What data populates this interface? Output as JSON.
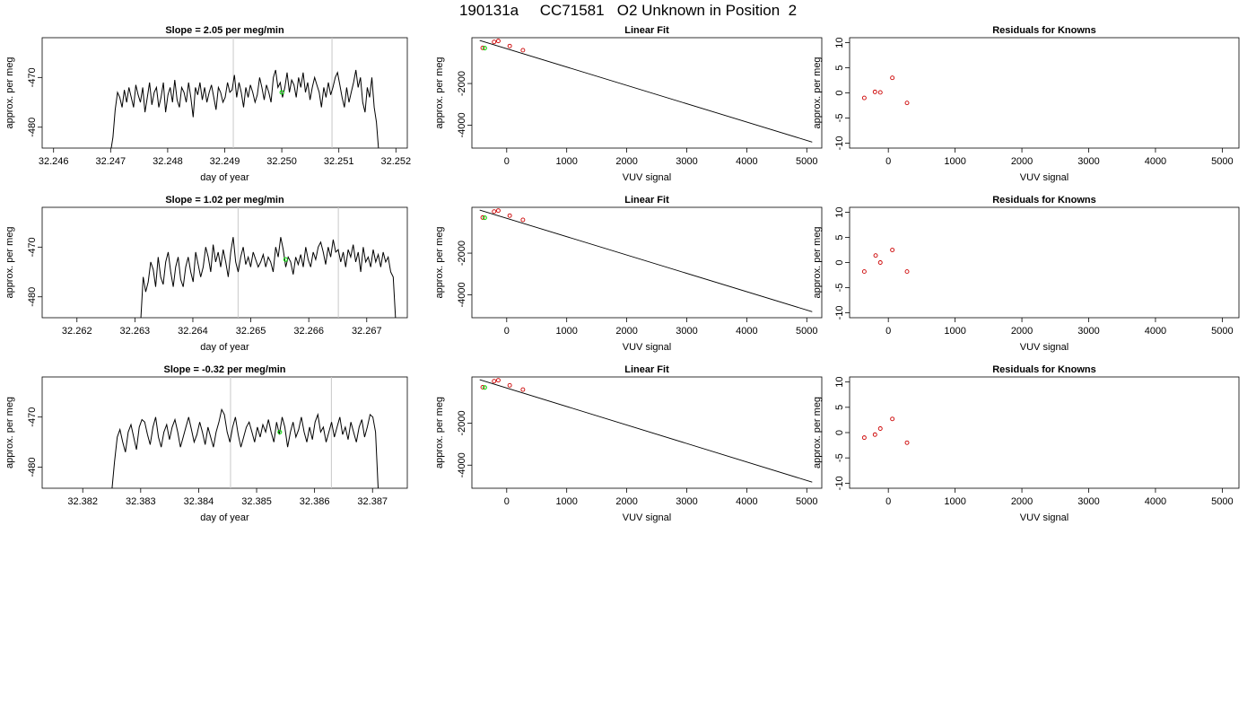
{
  "title": "190131a     CC71581   O2 Unknown in Position  2",
  "colors": {
    "trace": "#000000",
    "vline": "#c8c8c8",
    "green": "#00dd00",
    "resid": "#cc0000",
    "fit": "#000000"
  },
  "chart_data": [
    {
      "type": "line",
      "title": "Slope =  2.05  per meg/min",
      "xlabel": "day of year",
      "ylabel": "approx. per meg",
      "xlim": [
        32.2458,
        32.2522
      ],
      "ylim": [
        -484.2,
        -462.0
      ],
      "xticks": [
        "32.246",
        "32.247",
        "32.248",
        "32.249",
        "32.250",
        "32.251",
        "32.252"
      ],
      "xtick_values": [
        32.246,
        32.247,
        32.248,
        32.249,
        32.25,
        32.251,
        32.252
      ],
      "yticks": [
        "-480",
        "-470"
      ],
      "ytick_values": [
        -480,
        -470
      ],
      "vlines": [
        32.24915,
        32.25088
      ],
      "highlight_point": {
        "x": 32.25,
        "y": -473.0
      },
      "trace": {
        "x_start": 32.247,
        "x_end": 32.2517,
        "y": [
          -485,
          -482,
          -476.5,
          -473,
          -474,
          -476,
          -472.5,
          -475,
          -472,
          -474,
          -476,
          -471.5,
          -473.5,
          -475,
          -472,
          -477,
          -474,
          -471,
          -475.5,
          -473,
          -472,
          -476,
          -474,
          -471,
          -477,
          -473.5,
          -472,
          -475,
          -470.5,
          -474.5,
          -476,
          -472,
          -473,
          -475,
          -471,
          -474,
          -478,
          -472,
          -473.5,
          -471,
          -474.5,
          -472,
          -475,
          -473,
          -471.5,
          -474,
          -476.5,
          -472,
          -473,
          -475,
          -474,
          -471,
          -473,
          -472.5,
          -469.5,
          -474,
          -471,
          -473,
          -476,
          -472,
          -474,
          -471.5,
          -473,
          -475,
          -473.5,
          -470,
          -472,
          -474.5,
          -471.5,
          -473,
          -475,
          -470,
          -468.5,
          -472,
          -471,
          -474,
          -472,
          -469,
          -473,
          -470.5,
          -471.5,
          -474,
          -470,
          -472,
          -469,
          -473,
          -471,
          -474.5,
          -472,
          -470,
          -471.5,
          -473,
          -476,
          -472,
          -474,
          -471,
          -473.5,
          -472,
          -470,
          -469,
          -471.5,
          -474,
          -476,
          -472,
          -475,
          -473,
          -471,
          -468.5,
          -472,
          -470,
          -475,
          -477,
          -472,
          -474,
          -470,
          -476,
          -479,
          -485
        ]
      }
    },
    {
      "type": "scatter",
      "title": "Linear Fit",
      "xlabel": "VUV signal",
      "ylabel": "approx. per meg",
      "xlim": [
        -580,
        5250
      ],
      "ylim": [
        -5100,
        200
      ],
      "xticks": [
        "0",
        "1000",
        "2000",
        "3000",
        "4000",
        "5000"
      ],
      "xtick_values": [
        0,
        1000,
        2000,
        3000,
        4000,
        5000
      ],
      "yticks": [
        "-4000",
        "-2000"
      ],
      "ytick_values": [
        -4000,
        -2000
      ],
      "fit_line": {
        "x": [
          -450,
          5090
        ],
        "y": [
          69,
          -4810
        ]
      },
      "knowns": {
        "x": [
          -400,
          -210,
          -140,
          50,
          270
        ],
        "y": [
          -289,
          -3,
          44,
          -200,
          -401
        ]
      },
      "unknown": {
        "x": -365,
        "y": -302
      }
    },
    {
      "type": "scatter",
      "title": "Residuals for Knowns",
      "xlabel": "VUV signal",
      "ylabel": "approx. per meg",
      "xlim": [
        -580,
        5250
      ],
      "ylim": [
        -11,
        11
      ],
      "xticks": [
        "0",
        "1000",
        "2000",
        "3000",
        "4000",
        "5000"
      ],
      "xtick_values": [
        0,
        1000,
        2000,
        3000,
        4000,
        5000
      ],
      "yticks": [
        "-10",
        "-5",
        "0",
        "5",
        "10"
      ],
      "ytick_values": [
        -10,
        -5,
        0,
        5,
        10
      ],
      "points": {
        "x": [
          -360,
          -200,
          -120,
          60,
          280
        ],
        "y": [
          -1.0,
          0.2,
          0.1,
          3.0,
          -2.0
        ]
      }
    },
    {
      "type": "line",
      "title": "Slope =  1.02  per meg/min",
      "xlabel": "day of year",
      "ylabel": "approx. per meg",
      "xlim": [
        32.2614,
        32.2677
      ],
      "ylim": [
        -484.2,
        -462.0
      ],
      "xticks": [
        "32.262",
        "32.263",
        "32.264",
        "32.265",
        "32.266",
        "32.267"
      ],
      "xtick_values": [
        32.262,
        32.263,
        32.264,
        32.265,
        32.266,
        32.267
      ],
      "yticks": [
        "-480",
        "-470"
      ],
      "ytick_values": [
        -480,
        -470
      ],
      "vlines": [
        32.26478,
        32.26651
      ],
      "highlight_point": {
        "x": 32.2656,
        "y": -472.5
      },
      "trace": {
        "x_start": 32.2631,
        "x_end": 32.2675,
        "y": [
          -485,
          -476,
          -479,
          -477,
          -473,
          -474.5,
          -478,
          -472,
          -476,
          -477.5,
          -473,
          -471,
          -475,
          -478,
          -474,
          -472,
          -476.5,
          -478,
          -474,
          -472,
          -475,
          -477,
          -471,
          -473.5,
          -476,
          -474,
          -470,
          -472,
          -475,
          -469.5,
          -473,
          -471,
          -474,
          -470.5,
          -473,
          -476,
          -471,
          -468,
          -473,
          -475,
          -472,
          -470,
          -473.5,
          -472,
          -474,
          -471,
          -472.5,
          -474,
          -473,
          -471.5,
          -474,
          -472,
          -473,
          -475,
          -470,
          -472,
          -468,
          -470.5,
          -474,
          -472,
          -473,
          -475.5,
          -472,
          -473.5,
          -471.5,
          -474,
          -470,
          -472.5,
          -474,
          -471,
          -472.5,
          -470,
          -469,
          -471,
          -473.5,
          -470,
          -472,
          -468.5,
          -471,
          -470.5,
          -473,
          -471,
          -474,
          -470.5,
          -472,
          -469.5,
          -473,
          -471,
          -475,
          -470,
          -473,
          -472,
          -474,
          -470.5,
          -473,
          -471.5,
          -474,
          -471,
          -473,
          -472,
          -475,
          -476,
          -485
        ]
      }
    },
    {
      "type": "scatter",
      "title": "Linear Fit",
      "xlabel": "VUV signal",
      "ylabel": "approx. per meg",
      "xlim": [
        -580,
        5250
      ],
      "ylim": [
        -5100,
        200
      ],
      "xticks": [
        "0",
        "1000",
        "2000",
        "3000",
        "4000",
        "5000"
      ],
      "xtick_values": [
        0,
        1000,
        2000,
        3000,
        4000,
        5000
      ],
      "yticks": [
        "-4000",
        "-2000"
      ],
      "ytick_values": [
        -4000,
        -2000
      ],
      "fit_line": {
        "x": [
          -450,
          5090
        ],
        "y": [
          69,
          -4810
        ]
      },
      "knowns": {
        "x": [
          -400,
          -210,
          -140,
          50,
          270
        ],
        "y": [
          -290,
          -2,
          43,
          -200,
          -402
        ]
      },
      "unknown": {
        "x": -365,
        "y": -302
      }
    },
    {
      "type": "scatter",
      "title": "Residuals for Knowns",
      "xlabel": "VUV signal",
      "ylabel": "approx. per meg",
      "xlim": [
        -580,
        5250
      ],
      "ylim": [
        -11,
        11
      ],
      "xticks": [
        "0",
        "1000",
        "2000",
        "3000",
        "4000",
        "5000"
      ],
      "xtick_values": [
        0,
        1000,
        2000,
        3000,
        4000,
        5000
      ],
      "yticks": [
        "-10",
        "-5",
        "0",
        "5",
        "10"
      ],
      "ytick_values": [
        -10,
        -5,
        0,
        5,
        10
      ],
      "points": {
        "x": [
          -360,
          -190,
          -120,
          60,
          280
        ],
        "y": [
          -1.8,
          1.4,
          0.0,
          2.5,
          -1.8
        ]
      }
    },
    {
      "type": "line",
      "title": "Slope =  -0.32  per meg/min",
      "xlabel": "day of year",
      "ylabel": "approx. per meg",
      "xlim": [
        32.3813,
        32.3876
      ],
      "ylim": [
        -484.2,
        -462.0
      ],
      "xticks": [
        "32.382",
        "32.383",
        "32.384",
        "32.385",
        "32.386",
        "32.387"
      ],
      "xtick_values": [
        32.382,
        32.383,
        32.384,
        32.385,
        32.386,
        32.387
      ],
      "yticks": [
        "-480",
        "-470"
      ],
      "ytick_values": [
        -480,
        -470
      ],
      "vlines": [
        32.38455,
        32.38629
      ],
      "highlight_point": {
        "x": 32.3854,
        "y": -473.0
      },
      "trace": {
        "x_start": 32.3825,
        "x_end": 32.3871,
        "y": [
          -485,
          -479,
          -474,
          -472.5,
          -475,
          -477,
          -473,
          -471.5,
          -474,
          -476.5,
          -472,
          -470.5,
          -471,
          -473.5,
          -475.5,
          -472,
          -470,
          -474,
          -476,
          -473,
          -471.5,
          -474.5,
          -472,
          -470.5,
          -473,
          -476,
          -474,
          -472,
          -470,
          -472.5,
          -475,
          -473.5,
          -471,
          -473,
          -475.5,
          -472,
          -474,
          -476,
          -473,
          -471,
          -468.5,
          -469.5,
          -473,
          -475,
          -472,
          -470,
          -473.5,
          -476,
          -474,
          -472,
          -471,
          -473,
          -475,
          -472,
          -474,
          -471.5,
          -473,
          -470.5,
          -473,
          -475,
          -471,
          -473.5,
          -470,
          -472,
          -476,
          -473,
          -471,
          -474,
          -472.5,
          -470,
          -473,
          -475,
          -472,
          -474.5,
          -471,
          -469.5,
          -473,
          -472,
          -475,
          -473,
          -471,
          -474,
          -472,
          -470,
          -473.5,
          -472,
          -474.5,
          -471,
          -473,
          -475,
          -472,
          -470.5,
          -474,
          -472,
          -469.5,
          -470,
          -473,
          -485
        ]
      }
    },
    {
      "type": "scatter",
      "title": "Linear Fit",
      "xlabel": "VUV signal",
      "ylabel": "approx. per meg",
      "xlim": [
        -580,
        5250
      ],
      "ylim": [
        -5100,
        200
      ],
      "xticks": [
        "0",
        "1000",
        "2000",
        "3000",
        "4000",
        "5000"
      ],
      "xtick_values": [
        0,
        1000,
        2000,
        3000,
        4000,
        5000
      ],
      "yticks": [
        "-4000",
        "-2000"
      ],
      "ytick_values": [
        -4000,
        -2000
      ],
      "fit_line": {
        "x": [
          -450,
          5090
        ],
        "y": [
          69,
          -4810
        ]
      },
      "knowns": {
        "x": [
          -400,
          -210,
          -140,
          50,
          270
        ],
        "y": [
          -289,
          -2,
          44,
          -200,
          -402
        ]
      },
      "unknown": {
        "x": -365,
        "y": -302
      }
    },
    {
      "type": "scatter",
      "title": "Residuals for Knowns",
      "xlabel": "VUV signal",
      "ylabel": "approx. per meg",
      "xlim": [
        -580,
        5250
      ],
      "ylim": [
        -11,
        11
      ],
      "xticks": [
        "0",
        "1000",
        "2000",
        "3000",
        "4000",
        "5000"
      ],
      "xtick_values": [
        0,
        1000,
        2000,
        3000,
        4000,
        5000
      ],
      "yticks": [
        "-10",
        "-5",
        "0",
        "5",
        "10"
      ],
      "ytick_values": [
        -10,
        -5,
        0,
        5,
        10
      ],
      "points": {
        "x": [
          -360,
          -200,
          -120,
          60,
          280
        ],
        "y": [
          -1.0,
          -0.4,
          0.8,
          2.7,
          -2.0
        ]
      }
    }
  ]
}
